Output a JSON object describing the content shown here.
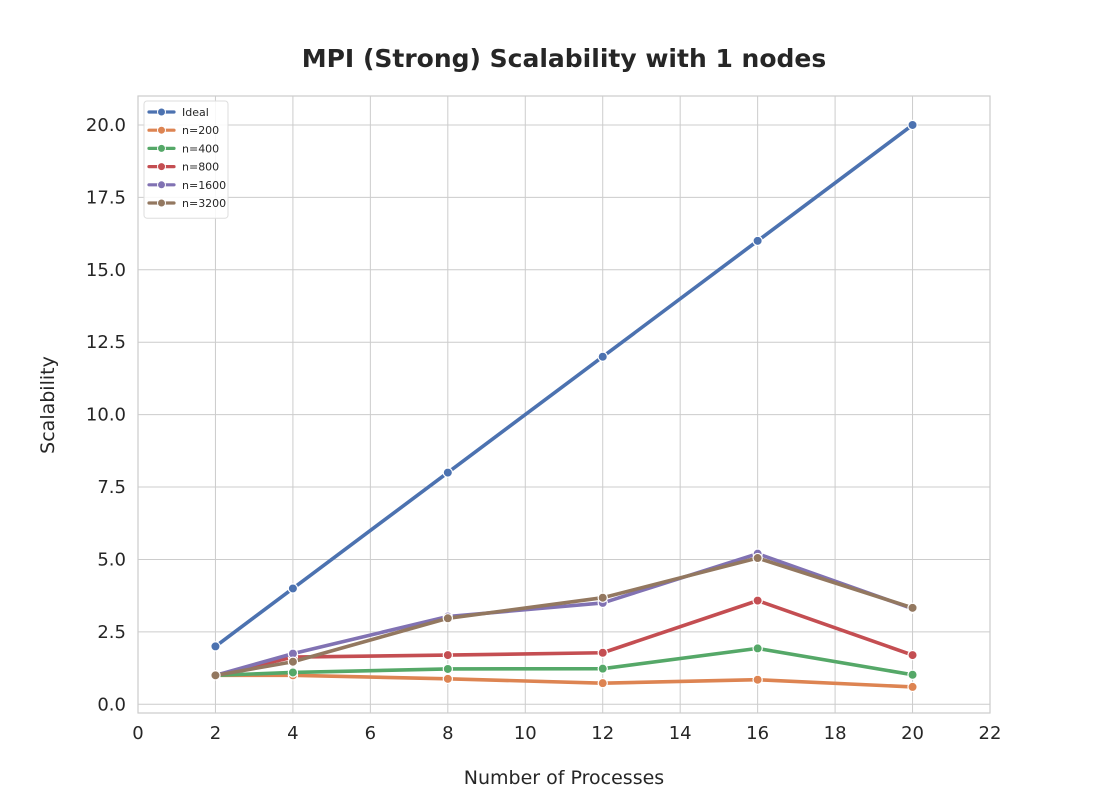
{
  "chart_data": {
    "type": "line",
    "title": "MPI (Strong) Scalability with 1 nodes",
    "xlabel": "Number of Processes",
    "ylabel": "Scalability",
    "xlim": [
      0,
      22
    ],
    "ylim": [
      -0.3,
      21
    ],
    "xticks": [
      "0",
      "2",
      "4",
      "6",
      "8",
      "10",
      "12",
      "14",
      "16",
      "18",
      "20",
      "22"
    ],
    "yticks": [
      "0.0",
      "2.5",
      "5.0",
      "7.5",
      "10.0",
      "12.5",
      "15.0",
      "17.5",
      "20.0"
    ],
    "grid": true,
    "legend_position": "top-left",
    "x": [
      2,
      4,
      8,
      12,
      16,
      20
    ],
    "series": [
      {
        "name": "Ideal",
        "color": "#4c72b0",
        "values": [
          2,
          4,
          8,
          12,
          16,
          20
        ]
      },
      {
        "name": "n=200",
        "color": "#dd8452",
        "values": [
          1.0,
          1.0,
          0.88,
          0.73,
          0.85,
          0.6
        ]
      },
      {
        "name": "n=400",
        "color": "#55a868",
        "values": [
          1.0,
          1.1,
          1.22,
          1.23,
          1.93,
          1.02
        ]
      },
      {
        "name": "n=800",
        "color": "#c44e52",
        "values": [
          1.0,
          1.63,
          1.7,
          1.78,
          3.58,
          1.7
        ]
      },
      {
        "name": "n=1600",
        "color": "#8172b3",
        "values": [
          1.0,
          1.75,
          3.03,
          3.5,
          5.2,
          3.3
        ]
      },
      {
        "name": "n=3200",
        "color": "#937860",
        "values": [
          1.0,
          1.47,
          2.97,
          3.68,
          5.05,
          3.33
        ]
      }
    ]
  }
}
